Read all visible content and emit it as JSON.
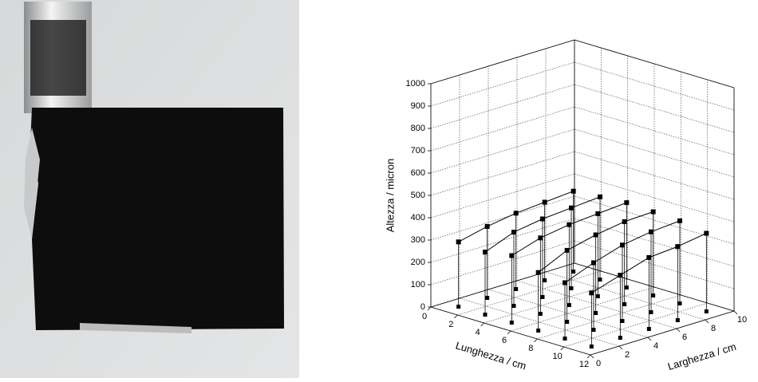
{
  "chart_data": {
    "type": "scatter3d",
    "x_label": "Lunghezza / cm",
    "y_label": "Larghezza / cm",
    "z_label": "Altezza / micron",
    "x": [
      1,
      1,
      1,
      1,
      1,
      3,
      3,
      3,
      3,
      3,
      5,
      5,
      5,
      5,
      5,
      7,
      7,
      7,
      7,
      7,
      9,
      9,
      9,
      9,
      9,
      11,
      11,
      11,
      11,
      11
    ],
    "y": [
      1,
      3,
      5,
      7,
      9,
      1,
      3,
      5,
      7,
      9,
      1,
      3,
      5,
      7,
      9,
      1,
      3,
      5,
      7,
      9,
      1,
      3,
      5,
      7,
      9,
      1,
      3,
      5,
      7,
      9
    ],
    "z": [
      290,
      320,
      340,
      350,
      360,
      280,
      330,
      350,
      360,
      370,
      300,
      340,
      360,
      370,
      380,
      260,
      320,
      350,
      370,
      375,
      250,
      300,
      340,
      360,
      370,
      240,
      280,
      320,
      330,
      350
    ],
    "color": "#000000",
    "xlim": [
      0,
      12
    ],
    "ylim": [
      0,
      10
    ],
    "zlim": [
      0,
      1000
    ],
    "xticks": [
      0,
      2,
      4,
      6,
      8,
      10,
      12
    ],
    "yticks": [
      0,
      2,
      4,
      6,
      8,
      10
    ],
    "zticks": [
      0,
      100,
      200,
      300,
      400,
      500,
      600,
      700,
      800,
      900,
      1000
    ],
    "grid": true
  }
}
